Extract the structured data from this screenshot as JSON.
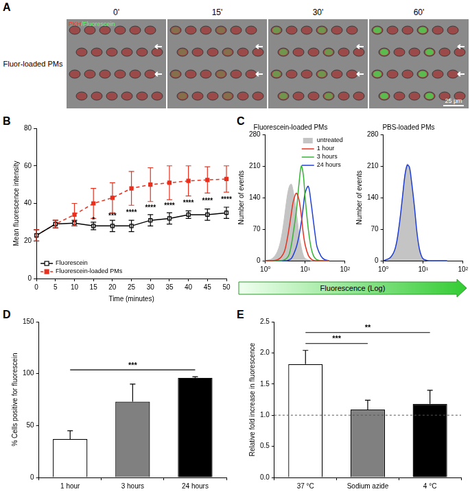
{
  "figure": {
    "panel_A": {
      "panel": "A",
      "row_label": "Fluor-loaded PMs",
      "channel_label_1": "PKH",
      "channel_label_2": "/Fluorescein",
      "timepoints": [
        "0'",
        "15'",
        "30'",
        "60'"
      ],
      "scale_bar": "25 μm"
    }
  },
  "chart_data": [
    {
      "panel": "B",
      "type": "line",
      "xlabel": "Time (minutes)",
      "ylabel": "Mean fluorescence intensity",
      "x": [
        0,
        5,
        10,
        15,
        20,
        25,
        30,
        35,
        40,
        45,
        50
      ],
      "xlim": [
        0,
        50
      ],
      "xticks": [
        0,
        5,
        10,
        15,
        20,
        25,
        30,
        35,
        40,
        45,
        50
      ],
      "ylim": [
        0,
        80
      ],
      "yticks": [
        0,
        20,
        40,
        60,
        80
      ],
      "grid": false,
      "legend": "lower left",
      "series": [
        {
          "name": "Fluorescein",
          "color": "#000000",
          "marker": "open_square",
          "line_style": "solid",
          "values": [
            23,
            29,
            29.5,
            28,
            28,
            28,
            31,
            32,
            34,
            34,
            35
          ],
          "errors": [
            3,
            2,
            1.5,
            2,
            3,
            3,
            3,
            3,
            2,
            3,
            3
          ]
        },
        {
          "name": "Fluorescein-loaded PMs",
          "color": "#e8301e",
          "marker": "square",
          "line_style": "dashed",
          "values": [
            23,
            29,
            34,
            40,
            43,
            48,
            50,
            51,
            52,
            52.5,
            53
          ],
          "errors": [
            3,
            2,
            6,
            8,
            8,
            9,
            9,
            9,
            8,
            7,
            7
          ]
        }
      ],
      "annotations": [
        {
          "x": 15,
          "text": "*"
        },
        {
          "x": 20,
          "text": "***"
        },
        {
          "x": 25,
          "text": "****"
        },
        {
          "x": 30,
          "text": "****"
        },
        {
          "x": 35,
          "text": "****"
        },
        {
          "x": 40,
          "text": "****"
        },
        {
          "x": 45,
          "text": "****"
        },
        {
          "x": 50,
          "text": "****"
        }
      ]
    },
    {
      "panel": "C",
      "type": "line",
      "xlabel": "Fluorescence (Log)",
      "ylabel": "Number of events",
      "log": "x",
      "xlim": [
        1,
        100
      ],
      "xticks": [
        {
          "value": 1,
          "label": "10⁰"
        },
        {
          "value": 10,
          "label": "10¹"
        },
        {
          "value": 100,
          "label": "10²"
        }
      ],
      "ylim": [
        0,
        280
      ],
      "yticks": [
        0,
        70,
        140,
        210,
        280
      ],
      "grid": false,
      "subplots": [
        {
          "title": "Fluorescein-loaded PMs",
          "legend": "upper right",
          "x": [
            1,
            1.5,
            2,
            2.5,
            3,
            3.5,
            4,
            4.5,
            5,
            6,
            7,
            8,
            9,
            10,
            12,
            14,
            16,
            18,
            20,
            25,
            30,
            40
          ],
          "series": [
            {
              "name": "untreated",
              "type": "area",
              "color": "#c4c4c4",
              "values": [
                0,
                5,
                20,
                50,
                95,
                140,
                165,
                170,
                155,
                110,
                60,
                30,
                12,
                5,
                2,
                0,
                0,
                0,
                0,
                0,
                0,
                0
              ]
            },
            {
              "name": "1 hour",
              "color": "#e8301e",
              "values": [
                0,
                0,
                2,
                8,
                20,
                45,
                75,
                105,
                130,
                150,
                135,
                100,
                60,
                35,
                12,
                4,
                1,
                0,
                0,
                0,
                0,
                0
              ]
            },
            {
              "name": "3 hours",
              "color": "#36b336",
              "values": [
                0,
                0,
                0,
                0,
                2,
                6,
                15,
                35,
                60,
                110,
                170,
                210,
                190,
                140,
                70,
                30,
                12,
                5,
                2,
                0,
                0,
                0
              ]
            },
            {
              "name": "24 hours",
              "color": "#1f3fd8",
              "values": [
                0,
                0,
                0,
                0,
                0,
                0,
                2,
                5,
                12,
                30,
                55,
                85,
                120,
                150,
                165,
                130,
                90,
                55,
                30,
                10,
                3,
                0
              ]
            }
          ]
        },
        {
          "title": "PBS-loaded PMs",
          "x": [
            1,
            1.5,
            2,
            2.5,
            3,
            3.5,
            4,
            4.5,
            5,
            6,
            7,
            8,
            9,
            10,
            12,
            14,
            16,
            18,
            20,
            25,
            30,
            40
          ],
          "series": [
            {
              "type": "area",
              "color": "#c4c4c4",
              "values": [
                0,
                8,
                30,
                80,
                140,
                195,
                215,
                205,
                180,
                120,
                60,
                25,
                10,
                4,
                1,
                0,
                0,
                0,
                0,
                0,
                0,
                0
              ]
            },
            {
              "color": "#1f3fd8",
              "values": [
                0,
                7,
                28,
                78,
                138,
                190,
                212,
                208,
                182,
                122,
                62,
                27,
                11,
                4,
                1,
                0,
                0,
                0,
                0,
                0,
                0,
                0
              ]
            }
          ]
        }
      ]
    },
    {
      "panel": "D",
      "type": "bar",
      "ylabel": "% Cells positive for fluorescein",
      "categories": [
        "1 hour",
        "3 hours",
        "24 hours"
      ],
      "values": [
        37,
        73,
        96
      ],
      "errors": [
        8,
        17,
        1
      ],
      "colors": [
        "#ffffff",
        "#808080",
        "#000000"
      ],
      "ylim": [
        0,
        150
      ],
      "yticks": [
        0,
        50,
        100,
        150
      ],
      "grid": false,
      "annotations": [
        {
          "from": "1 hour",
          "to": "24 hours",
          "text": "***"
        }
      ]
    },
    {
      "panel": "E",
      "type": "bar",
      "ylabel": "Relative fold increase in fluorescence",
      "categories": [
        "37 °C",
        "Sodium azide",
        "4 °C"
      ],
      "values": [
        1.82,
        1.09,
        1.18
      ],
      "errors": [
        0.22,
        0.15,
        0.22
      ],
      "colors": [
        "#ffffff",
        "#808080",
        "#000000"
      ],
      "ylim": [
        0,
        2.5
      ],
      "yticks": [
        {
          "value": 0,
          "label": "0.0"
        },
        0.5,
        {
          "value": 1,
          "label": "1.0"
        },
        1.5,
        {
          "value": 2,
          "label": "2.0"
        },
        2.5
      ],
      "grid": false,
      "hline": 1,
      "annotations": [
        {
          "from": "37 °C",
          "to": "Sodium azide",
          "text": "***"
        },
        {
          "from": "37 °C",
          "to": "4 °C",
          "text": "**"
        }
      ]
    }
  ]
}
